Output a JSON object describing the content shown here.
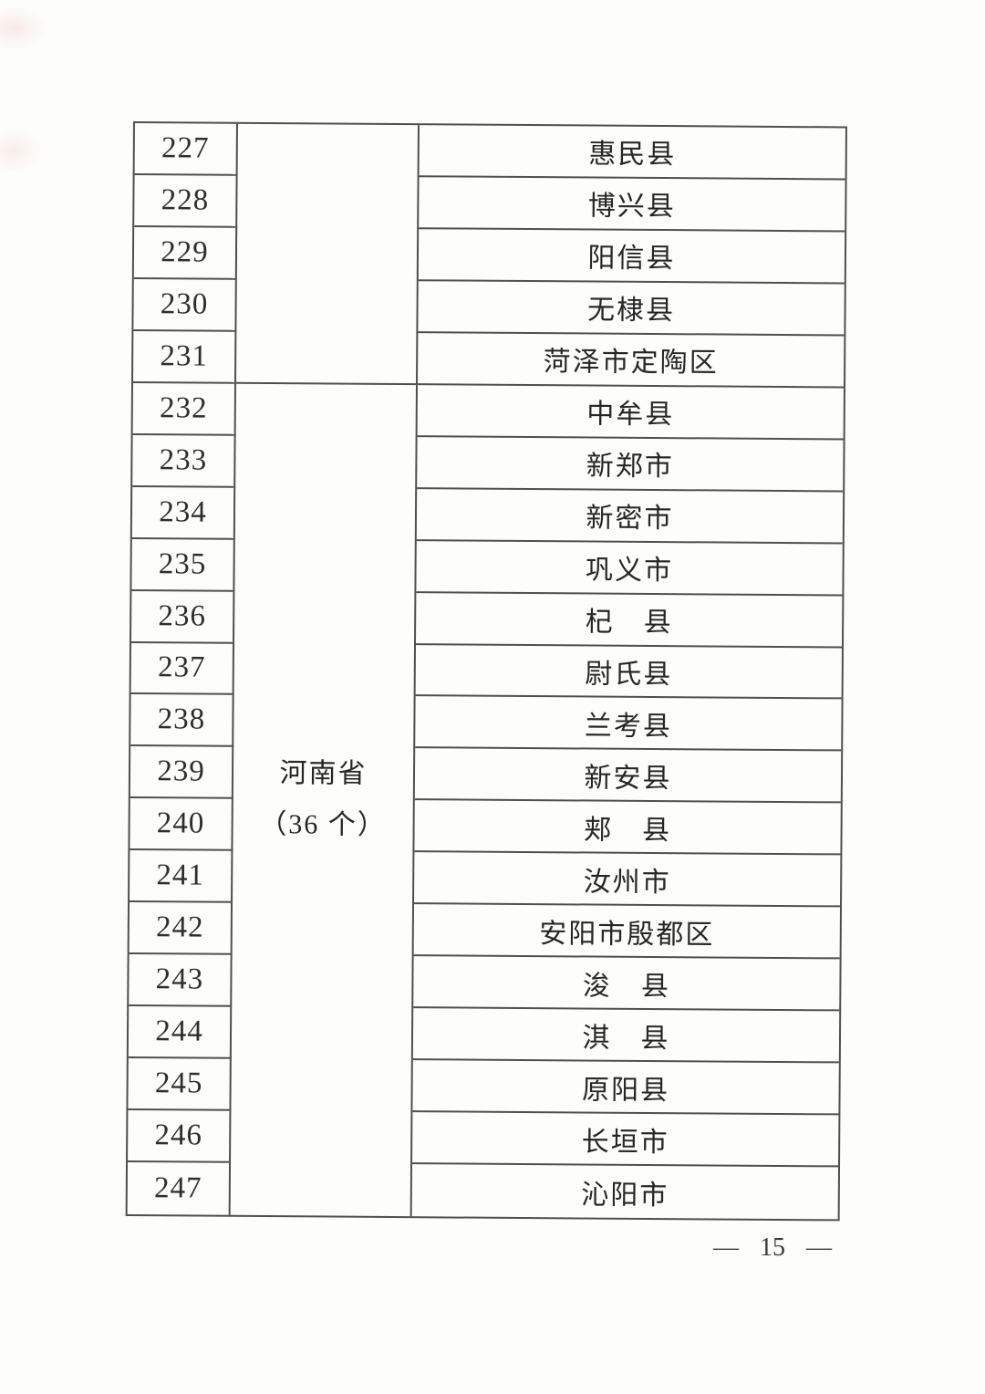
{
  "table": {
    "rows": [
      {
        "num": "227",
        "name": "惠民县"
      },
      {
        "num": "228",
        "name": "博兴县"
      },
      {
        "num": "229",
        "name": "阳信县"
      },
      {
        "num": "230",
        "name": "无棣县"
      },
      {
        "num": "231",
        "name": "菏泽市定陶区"
      },
      {
        "num": "232",
        "name": "中牟县"
      },
      {
        "num": "233",
        "name": "新郑市"
      },
      {
        "num": "234",
        "name": "新密市"
      },
      {
        "num": "235",
        "name": "巩义市"
      },
      {
        "num": "236",
        "name": "杞　县"
      },
      {
        "num": "237",
        "name": "尉氏县"
      },
      {
        "num": "238",
        "name": "兰考县"
      },
      {
        "num": "239",
        "name": "新安县"
      },
      {
        "num": "240",
        "name": "郏　县"
      },
      {
        "num": "241",
        "name": "汝州市"
      },
      {
        "num": "242",
        "name": "安阳市殷都区"
      },
      {
        "num": "243",
        "name": "浚　县"
      },
      {
        "num": "244",
        "name": "淇　县"
      },
      {
        "num": "245",
        "name": "原阳县"
      },
      {
        "num": "246",
        "name": "长垣市"
      },
      {
        "num": "247",
        "name": "沁阳市"
      }
    ],
    "group1_province_label": "",
    "group2_province_line1": "河南省",
    "group2_province_line2": "（36 个）"
  },
  "footer": {
    "page_number": "— 15 —"
  }
}
